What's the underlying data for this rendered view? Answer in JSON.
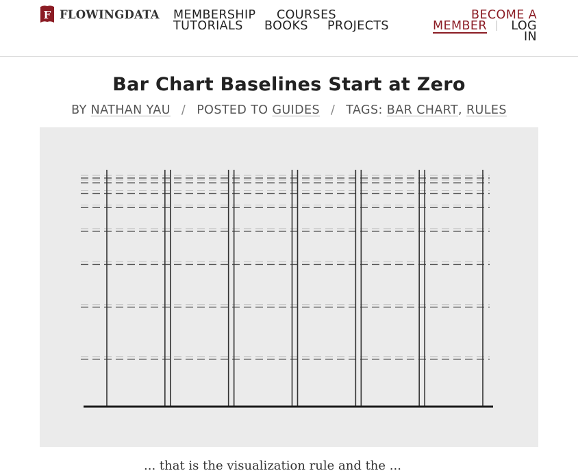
{
  "site": {
    "logo_text": "FLOWINGDATA",
    "logo_letter": "F",
    "brand_color": "#8b1c24"
  },
  "nav": {
    "items": [
      "MEMBERSHIP",
      "COURSES",
      "TUTORIALS",
      "BOOKS",
      "PROJECTS"
    ]
  },
  "account": {
    "become_member_line1": "BECOME A",
    "become_member_line2": "MEMBER",
    "login_line1": "LOG",
    "login_line2": "IN"
  },
  "post": {
    "title": "Bar Chart Baselines Start at Zero",
    "by_label": "BY",
    "author": "NATHAN YAU",
    "posted_label": "POSTED TO",
    "category": "GUIDES",
    "tags_label": "TAGS:",
    "tags": [
      "BAR CHART",
      "RULES"
    ],
    "excerpt": "... that is the visualization rule and the ..."
  },
  "figure": {
    "description": "illustration-of-bars-on-zero-baseline",
    "grid_levels": [
      0.2,
      0.42,
      0.6,
      0.74,
      0.84,
      0.9,
      0.945,
      0.965
    ],
    "bar_count": 6,
    "line_color": "#333333",
    "dash_color": "#555555"
  }
}
